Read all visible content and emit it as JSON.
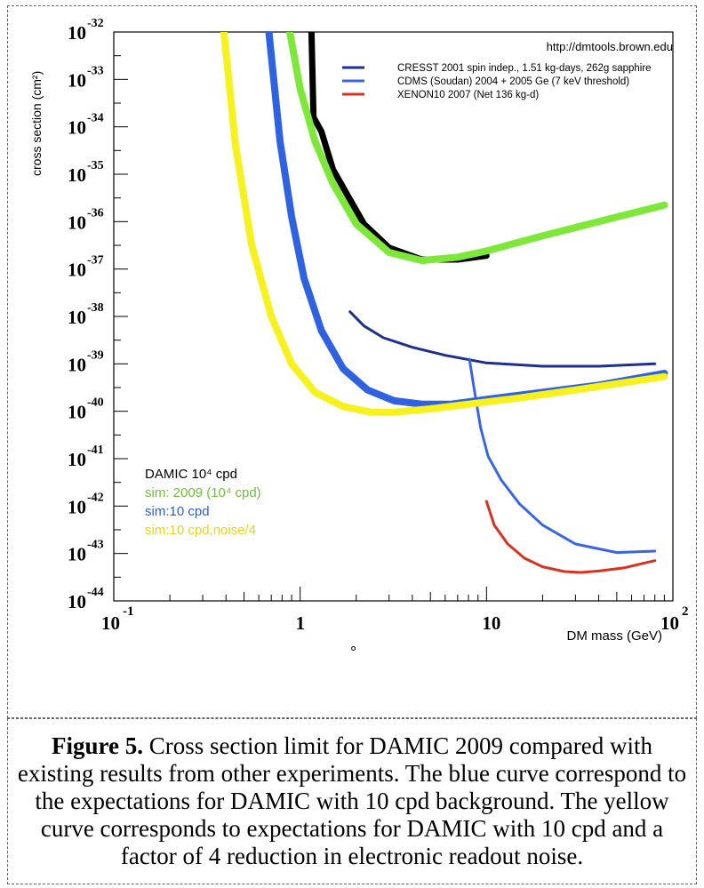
{
  "source_url": "http://dmtools.brown.edu",
  "dot_mark": "°",
  "chart_data": {
    "type": "line",
    "xlabel": "DM mass (GeV)",
    "ylabel": "cross section (cm²)",
    "x_scale": "log",
    "y_scale": "log",
    "xlim": [
      0.1,
      100
    ],
    "ylim": [
      1e-44,
      1e-32
    ],
    "x_ticks": [
      {
        "value": 0.1,
        "base": "10",
        "exp": "-1"
      },
      {
        "value": 1,
        "base": "1",
        "exp": ""
      },
      {
        "value": 10,
        "base": "10",
        "exp": ""
      },
      {
        "value": 100,
        "base": "10",
        "exp": "2"
      }
    ],
    "y_ticks": [
      {
        "exp": -32,
        "label": "-32"
      },
      {
        "exp": -33,
        "label": "-33"
      },
      {
        "exp": -34,
        "label": "-34"
      },
      {
        "exp": -35,
        "label": "-35"
      },
      {
        "exp": -36,
        "label": "-36"
      },
      {
        "exp": -37,
        "label": "-37"
      },
      {
        "exp": -38,
        "label": "-38"
      },
      {
        "exp": -39,
        "label": "-39"
      },
      {
        "exp": -40,
        "label": "-40"
      },
      {
        "exp": -41,
        "label": "-41"
      },
      {
        "exp": -42,
        "label": "-42"
      },
      {
        "exp": -43,
        "label": "-43"
      },
      {
        "exp": -44,
        "label": "-44"
      }
    ],
    "y_tick_base": "10",
    "legend_top": [
      {
        "name": "CRESST 2001 spin indep., 1.51 kg-days, 262g sapphire",
        "color": "#1f2f8c"
      },
      {
        "name": "CDMS (Soudan) 2004 + 2005 Ge (7 keV threshold)",
        "color": "#3a64e8"
      },
      {
        "name": "XENON10 2007 (Net 136 kg-d)",
        "color": "#d93020"
      }
    ],
    "legend_bottom": [
      {
        "text": "DAMIC 10⁴ cpd",
        "color": "#000000"
      },
      {
        "text": "sim: 2009 (10⁴ cpd)",
        "color": "#6fbf3a"
      },
      {
        "text": "sim:10 cpd",
        "color": "#2b5fd0"
      },
      {
        "text": "sim:10 cpd,noise/4",
        "color": "#e8d41a"
      }
    ],
    "series": [
      {
        "name": "CRESST 2001 spin indep., 1.51 kg-days, 262g sapphire",
        "color": "#1f2f8c",
        "width": 3,
        "x": [
          1.85,
          2.2,
          2.8,
          4,
          6,
          10,
          20,
          40,
          80
        ],
        "y": [
          -37.9,
          -38.2,
          -38.45,
          -38.65,
          -38.82,
          -38.98,
          -39.05,
          -39.05,
          -39.0
        ]
      },
      {
        "name": "CDMS (Soudan) 2004 + 2005 Ge (7 keV threshold)",
        "color": "#3a64e8",
        "width": 3,
        "x": [
          8.1,
          8.6,
          9.3,
          10.2,
          12,
          15,
          20,
          30,
          50,
          80
        ],
        "y": [
          -38.9,
          -39.55,
          -40.35,
          -40.95,
          -41.45,
          -41.95,
          -42.4,
          -42.8,
          -42.98,
          -42.95
        ]
      },
      {
        "name": "XENON10 2007 (Net 136 kg-d)",
        "color": "#d93020",
        "width": 3,
        "x": [
          10,
          11,
          13,
          16,
          20,
          26,
          32,
          40,
          55,
          80
        ],
        "y": [
          -41.9,
          -42.4,
          -42.8,
          -43.1,
          -43.28,
          -43.38,
          -43.4,
          -43.37,
          -43.3,
          -43.15
        ]
      },
      {
        "name": "DAMIC 10⁴ cpd",
        "color": "#000000",
        "width": 7,
        "x": [
          1.15,
          1.18,
          1.3,
          1.5,
          1.8,
          2.2,
          3.0,
          4.5,
          7,
          10
        ],
        "y": [
          -32,
          -33.8,
          -34.1,
          -34.9,
          -35.45,
          -36.05,
          -36.55,
          -36.8,
          -36.8,
          -36.72
        ]
      },
      {
        "name": "sim: 2009 (10⁴ cpd)",
        "color": "#7de83a",
        "width": 8,
        "x": [
          0.88,
          1.0,
          1.2,
          1.5,
          2.0,
          3.0,
          4.5,
          7,
          10,
          20,
          40,
          90
        ],
        "y": [
          -32,
          -33.2,
          -34.3,
          -35.2,
          -36.05,
          -36.65,
          -36.82,
          -36.75,
          -36.62,
          -36.3,
          -36.0,
          -35.65
        ]
      },
      {
        "name": "sim:10 cpd",
        "color": "#2e62e0",
        "width": 8,
        "x": [
          0.68,
          0.78,
          0.9,
          1.05,
          1.3,
          1.7,
          2.3,
          3.2,
          4.5,
          6.5,
          10,
          20,
          40,
          90
        ],
        "y": [
          -32,
          -34.3,
          -35.9,
          -37.2,
          -38.3,
          -39.1,
          -39.55,
          -39.78,
          -39.85,
          -39.85,
          -39.75,
          -39.6,
          -39.45,
          -39.2
        ]
      },
      {
        "name": "sim:10 cpd,noise/4",
        "color": "#f7f21e",
        "width": 8,
        "x": [
          0.39,
          0.45,
          0.55,
          0.7,
          0.9,
          1.2,
          1.7,
          2.4,
          3.2,
          5,
          8,
          15,
          30,
          90
        ],
        "y": [
          -32,
          -34.4,
          -36.5,
          -38.0,
          -39.0,
          -39.6,
          -39.9,
          -40.02,
          -40.02,
          -39.95,
          -39.85,
          -39.72,
          -39.55,
          -39.27
        ]
      }
    ]
  },
  "caption": {
    "label": "Figure 5.",
    "text": " Cross section limit for DAMIC 2009 compared with existing results from other experiments. The blue  curve correspond to the expectations for DAMIC with 10 cpd background. The yellow curve corresponds to expectations for DAMIC with 10 cpd and a factor of 4 reduction in electronic readout noise."
  }
}
